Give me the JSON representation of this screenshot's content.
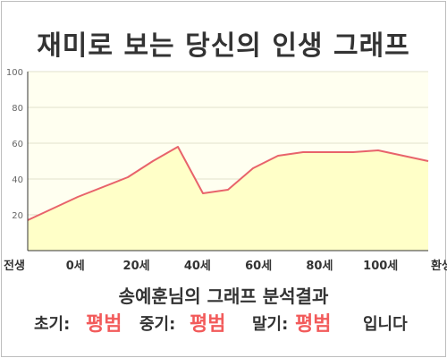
{
  "title": "재미로 보는 당신의 인생 그래프",
  "summary": {
    "headline": "송예훈님의 그래프 분석결과",
    "early_label": "초기:",
    "early_value": "평범",
    "middle_label": "중기:",
    "middle_value": "평범",
    "late_label": "말기:",
    "late_value": "평범",
    "ending": "입니다"
  },
  "chart_data": {
    "type": "area",
    "title": "재미로 보는 당신의 인생 그래프",
    "xlabel": "",
    "ylabel": "",
    "categories": [
      "전생",
      "0세",
      "20세",
      "40세",
      "60세",
      "80세",
      "100세",
      "환생"
    ],
    "ylim": [
      0,
      100
    ],
    "yticks": [
      20,
      40,
      60,
      80,
      100
    ],
    "grid": true,
    "legend": "none",
    "series": [
      {
        "x": [
          -40,
          -20,
          0,
          10,
          20,
          30,
          40,
          50,
          60,
          70,
          80,
          90,
          100,
          120
        ],
        "values": [
          17,
          30,
          41,
          50,
          58,
          32,
          34,
          46,
          53,
          55,
          55,
          55,
          56,
          50
        ]
      }
    ],
    "colors": {
      "line": "#e8636b",
      "fill": "#ffffc8",
      "plot_background": "#fffff0",
      "grid": "#e0e0cc"
    }
  }
}
